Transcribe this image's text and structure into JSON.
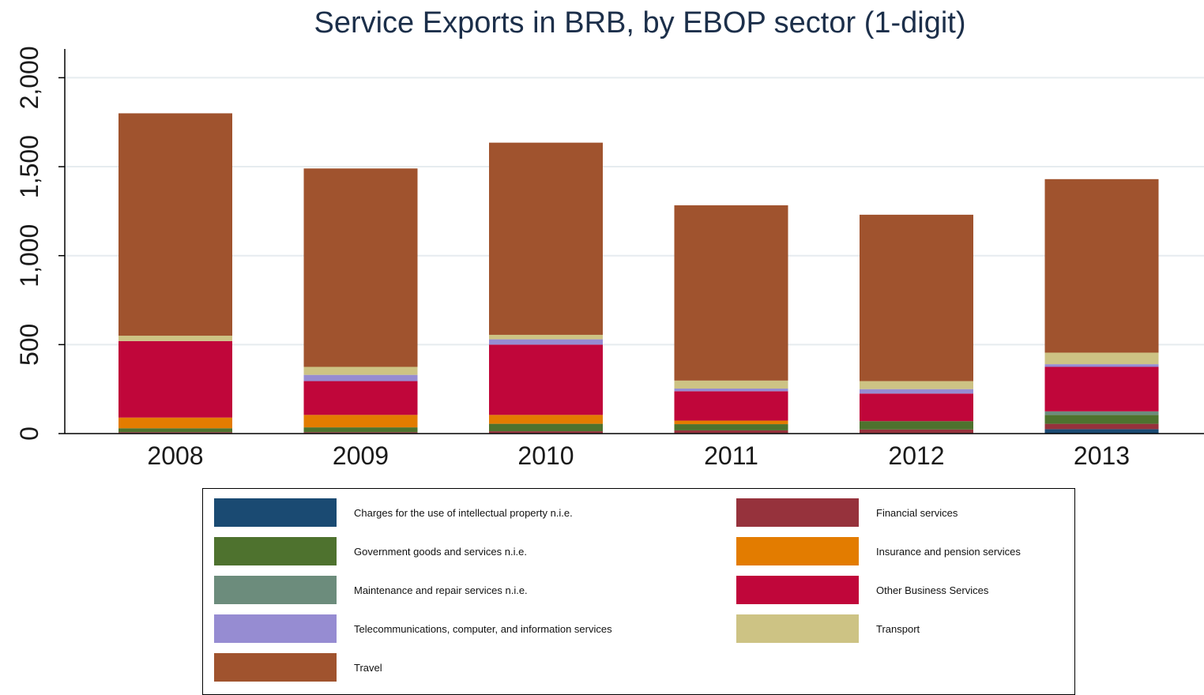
{
  "chart_data": {
    "type": "bar",
    "stacked": true,
    "title": "Service Exports in BRB, by EBOP sector (1-digit)",
    "xlabel": "",
    "ylabel": "",
    "ylim": [
      0,
      2150
    ],
    "yticks": [
      0,
      500,
      1000,
      1500,
      2000
    ],
    "ytick_labels": [
      "0",
      "500",
      "1,000",
      "1,500",
      "2,000"
    ],
    "grid": true,
    "legend_position": "bottom",
    "categories": [
      "2008",
      "2009",
      "2010",
      "2011",
      "2012",
      "2013"
    ],
    "series": [
      {
        "name": "Charges for the use of intellectual property n.i.e.",
        "color": "#1a4a72",
        "values": [
          3,
          3,
          3,
          3,
          3,
          25
        ]
      },
      {
        "name": "Financial services",
        "color": "#96323c",
        "values": [
          5,
          5,
          10,
          15,
          20,
          30
        ]
      },
      {
        "name": "Government goods and services n.i.e.",
        "color": "#4e722e",
        "values": [
          22,
          27,
          42,
          35,
          47,
          50
        ]
      },
      {
        "name": "Insurance and pension services",
        "color": "#e37c00",
        "values": [
          60,
          70,
          50,
          20,
          0,
          0
        ]
      },
      {
        "name": "Maintenance and repair services n.i.e.",
        "color": "#6c8c7c",
        "values": [
          0,
          0,
          0,
          0,
          0,
          20
        ]
      },
      {
        "name": "Other Business Services",
        "color": "#c0063a",
        "values": [
          430,
          190,
          395,
          165,
          155,
          250
        ]
      },
      {
        "name": "Telecommunications, computer, and information services",
        "color": "#968cd2",
        "values": [
          0,
          35,
          30,
          15,
          25,
          15
        ]
      },
      {
        "name": "Transport",
        "color": "#cdc384",
        "values": [
          30,
          45,
          25,
          45,
          45,
          65
        ]
      },
      {
        "name": "Travel",
        "color": "#a0532e",
        "values": [
          1250,
          1115,
          1080,
          985,
          935,
          975
        ]
      }
    ]
  },
  "legend_order": [
    0,
    1,
    2,
    3,
    4,
    5,
    6,
    7,
    8
  ]
}
